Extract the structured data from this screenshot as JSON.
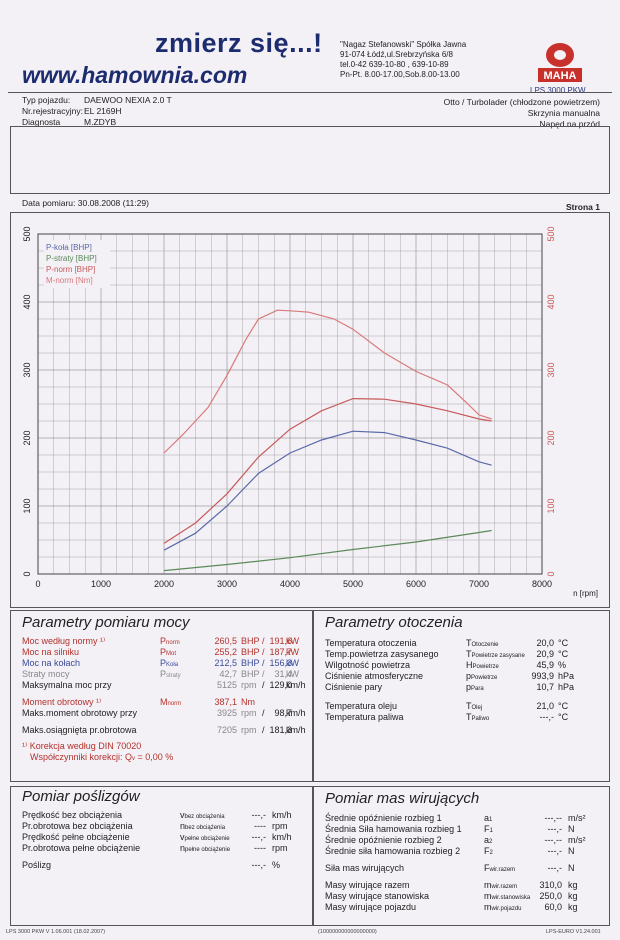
{
  "header": {
    "title": "zmierz się...!",
    "url": "www.hamownia.com",
    "company_lines": [
      "\"Nagaz Stefanowski\" Spółka Jawna",
      "91-074 Łódź,ul.Srebrzyńska 6/8",
      "tel.0-42 639-10-80 , 639-10-89",
      "Pn-Pt. 8.00-17.00,Sob.8.00-13.00"
    ],
    "logo_text": "MAHA",
    "model": "LPS 3000 PKW"
  },
  "vehicle": {
    "rows": [
      {
        "label": "Typ pojazdu:",
        "value": "DAEWOO NEXIA 2.0 T"
      },
      {
        "label": "Nr.rejestracyjny:",
        "value": "EL 2169H"
      },
      {
        "label": "Diagnosta",
        "value": "M.ZDYB"
      }
    ],
    "engine": "Otto / Turbolader (chłodzone powietrzem)",
    "gearbox": "Skrzynia manualna",
    "drive": "Napęd na przód"
  },
  "measurement": {
    "date": "Data pomiaru: 30.08.2008 (11:29)",
    "page": "Strona 1"
  },
  "chart_data": {
    "type": "line",
    "xlabel": "n [rpm]",
    "xlim": [
      0,
      8000
    ],
    "ylim": [
      0,
      500
    ],
    "x_ticks": [
      "0",
      "1000",
      "2000",
      "3000",
      "4000",
      "5000",
      "6000",
      "7000",
      "8000"
    ],
    "y_ticks_left": [
      "0",
      "100",
      "200",
      "300",
      "400",
      "500"
    ],
    "y_ticks_right": [
      "0",
      "100",
      "200",
      "300",
      "400",
      "500"
    ],
    "grid": true,
    "legend_position": "top-left",
    "series": [
      {
        "name": "P-koła [BHP]",
        "color": "#5a6aa8",
        "x": [
          2000,
          2500,
          3000,
          3500,
          4000,
          4500,
          5000,
          5500,
          6000,
          6500,
          7000,
          7200
        ],
        "y": [
          35,
          60,
          100,
          148,
          178,
          197,
          210,
          208,
          197,
          185,
          165,
          160
        ]
      },
      {
        "name": "P-straty [BHP]",
        "color": "#5a8a5a",
        "x": [
          2000,
          3000,
          4000,
          5000,
          6000,
          7000,
          7200
        ],
        "y": [
          5,
          14,
          24,
          36,
          47,
          61,
          64
        ]
      },
      {
        "name": "P-norm [BHP]",
        "color": "#c85a5a",
        "x": [
          2000,
          2500,
          3000,
          3500,
          4000,
          4500,
          5000,
          5500,
          6000,
          6500,
          7000,
          7200
        ],
        "y": [
          45,
          75,
          118,
          172,
          213,
          240,
          258,
          257,
          250,
          240,
          228,
          225
        ]
      },
      {
        "name": "M-norm [Nm]",
        "color": "#d97a7a",
        "x": [
          2000,
          2300,
          2700,
          3000,
          3300,
          3500,
          3800,
          4000,
          4300,
          4700,
          5000,
          5500,
          6000,
          6500,
          6800,
          7000,
          7200
        ],
        "y": [
          178,
          205,
          245,
          292,
          345,
          375,
          388,
          387,
          385,
          375,
          360,
          325,
          298,
          278,
          252,
          234,
          228
        ]
      }
    ]
  },
  "power_params": {
    "title": "Parametry pomiaru mocy",
    "rows": [
      {
        "label": "Moc według normy ¹⁾",
        "sym": "P",
        "sub": "norm",
        "v1": "260,5",
        "u1": "BHP",
        "v2": "191,6",
        "u2": "kW",
        "cls": "red"
      },
      {
        "label": "Moc na silniku",
        "sym": "P",
        "sub": "Mot",
        "v1": "255,2",
        "u1": "BHP",
        "v2": "187,7",
        "u2": "kW",
        "cls": "red"
      },
      {
        "label": "Moc na kołach",
        "sym": "P",
        "sub": "Koła",
        "v1": "212,5",
        "u1": "BHP",
        "v2": "156,3",
        "u2": "kW",
        "cls": "blue"
      },
      {
        "label": "Straty mocy",
        "sym": "P",
        "sub": "straty",
        "v1": "42,7",
        "u1": "BHP",
        "v2": "31,4",
        "u2": "kW",
        "cls": "gray"
      },
      {
        "label": "Maksymalna moc przy",
        "sym": "",
        "sub": "",
        "v1": "5125",
        "u1": "rpm",
        "v2": "129,0",
        "u2": "km/h",
        "cls": ""
      }
    ],
    "torque_rows": [
      {
        "label": "Moment obrotowy ¹⁾",
        "sym": "M",
        "sub": "norm",
        "v1": "387,1",
        "u1": "Nm",
        "v2": "",
        "u2": "",
        "cls": "red"
      },
      {
        "label": "Maks.moment obrotowy przy",
        "sym": "",
        "sub": "",
        "v1": "3925",
        "u1": "rpm",
        "v2": "98,7",
        "u2": "km/h",
        "cls": ""
      }
    ],
    "max_rpm_row": {
      "label": "Maks.osiągnięta pr.obrotowa",
      "v1": "7205",
      "u1": "rpm",
      "v2": "181,3",
      "u2": "km/h"
    },
    "correction1": "¹⁾ Korekcja według DIN 70020",
    "correction2": "Współczynniki korekcji: Q",
    "correction_sub": "v",
    "correction_val": "=  0,00 %"
  },
  "ambient_params": {
    "title": "Parametry otoczenia",
    "rows": [
      {
        "label": "Temperatura otoczenia",
        "sym": "T",
        "sub": "Otoczenie",
        "val": "20,0",
        "unit": "°C"
      },
      {
        "label": "Temp.powietrza zasysanego",
        "sym": "T",
        "sub": "Powietrze zasysane",
        "val": "20,9",
        "unit": "°C"
      },
      {
        "label": "Wilgotność powietrza",
        "sym": "H",
        "sub": "Powietrze",
        "val": "45,9",
        "unit": "%"
      },
      {
        "label": "Ciśnienie atmosferyczne",
        "sym": "p",
        "sub": "Powietrze",
        "val": "993,9",
        "unit": "hPa"
      },
      {
        "label": "Ciśnienie pary",
        "sym": "p",
        "sub": "Para",
        "val": "10,7",
        "unit": "hPa"
      },
      {
        "label": "Temperatura oleju",
        "sym": "T",
        "sub": "Olej",
        "val": "21,0",
        "unit": "°C"
      },
      {
        "label": "Temperatura paliwa",
        "sym": "T",
        "sub": "Paliwo",
        "val": "---,-",
        "unit": "°C"
      }
    ]
  },
  "slip": {
    "title": "Pomiar poślizgów",
    "rows": [
      {
        "label": "Prędkość bez obciążenia",
        "sym": "v",
        "sub": "bez obciążenia",
        "val": "---,-",
        "unit": "km/h"
      },
      {
        "label": "Pr.obrotowa bez obciążenia",
        "sym": "n",
        "sub": "bez obciążenia",
        "val": "----",
        "unit": "rpm"
      },
      {
        "label": "Prędkość pełne obciążenie",
        "sym": "v",
        "sub": "pełne obciążenie",
        "val": "---,-",
        "unit": "km/h"
      },
      {
        "label": "Pr.obrotowa pełne obciążenie",
        "sym": "n",
        "sub": "pełne obciążenie",
        "val": "----",
        "unit": "rpm"
      },
      {
        "label": "Poślizg",
        "sym": "",
        "sub": "",
        "val": "---,-",
        "unit": "%"
      }
    ]
  },
  "masses": {
    "title": "Pomiar mas wirujących",
    "rows": [
      {
        "label": "Średnie opóźnienie rozbieg 1",
        "sym": "a",
        "sub": "1",
        "val": "---,--",
        "unit": "m/s²"
      },
      {
        "label": "Średnia Siła hamowania rozbieg 1",
        "sym": "F",
        "sub": "1",
        "val": "---,-",
        "unit": "N"
      },
      {
        "label": "Średnie opóźnienie rozbieg 2",
        "sym": "a",
        "sub": "2",
        "val": "---,--",
        "unit": "m/s²"
      },
      {
        "label": "Średnie siła hamowania rozbieg 2",
        "sym": "F",
        "sub": "2",
        "val": "---,-",
        "unit": "N"
      },
      {
        "label": "Siła mas wirujących",
        "sym": "F",
        "sub": "wir.razem",
        "val": "---,-",
        "unit": "N"
      },
      {
        "label": "Masy wirujące razem",
        "sym": "m",
        "sub": "wir.razem",
        "val": "310,0",
        "unit": "kg"
      },
      {
        "label": "Masy wirujące stanowiska",
        "sym": "m",
        "sub": "wir.stanowiska",
        "val": "250,0",
        "unit": "kg"
      },
      {
        "label": "Masy wirujące pojazdu",
        "sym": "m",
        "sub": "wir.pojazdu",
        "val": "60,0",
        "unit": "kg"
      }
    ]
  },
  "footer": {
    "left": "LPS 3000 PKW V 1.06.001 (18.02.2007)",
    "center": "(100000000000000000)",
    "right": "LPS-EURO V1.24.001"
  }
}
